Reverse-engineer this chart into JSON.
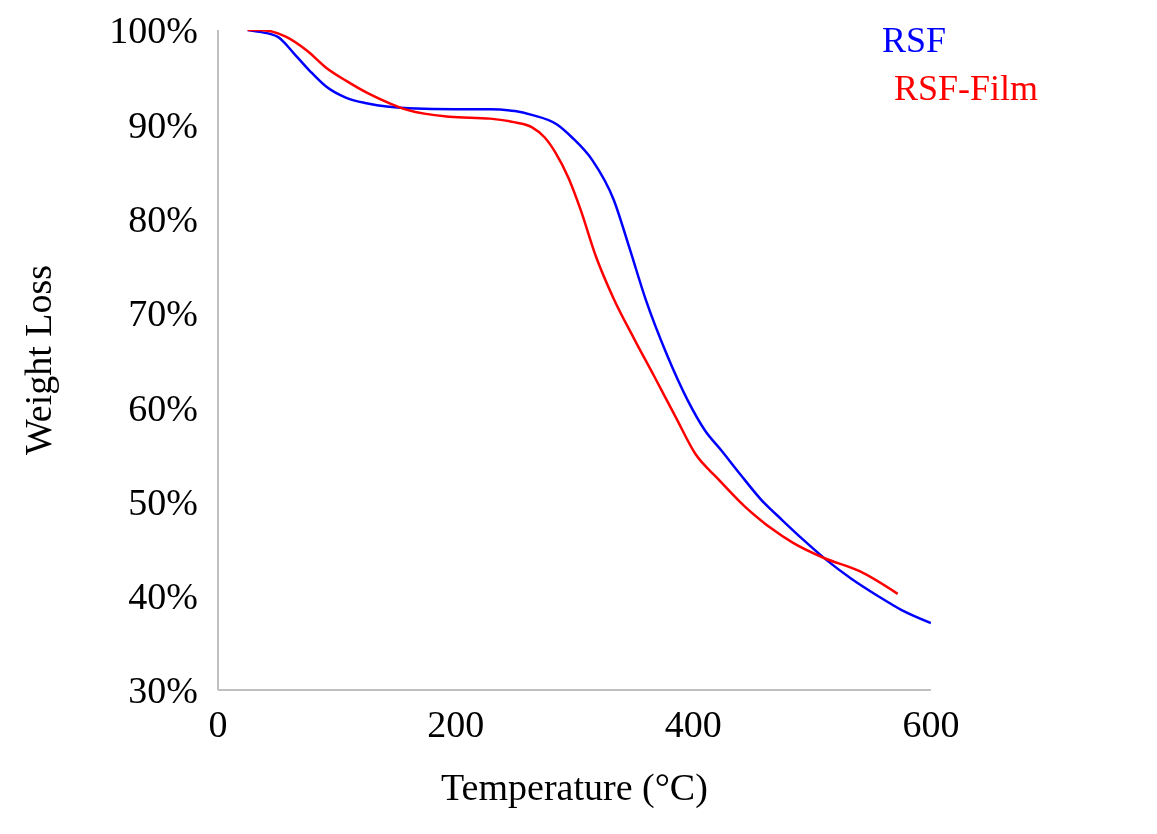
{
  "chart_data": {
    "type": "line",
    "xlabel": "Temperature (°C)",
    "ylabel": "Weight Loss",
    "xlim": [
      0,
      600
    ],
    "xticks": [
      0,
      200,
      400,
      600
    ],
    "ylim": [
      30,
      100
    ],
    "yticks": [
      {
        "value": 30,
        "label": "30%"
      },
      {
        "value": 40,
        "label": "40%"
      },
      {
        "value": 50,
        "label": "50%"
      },
      {
        "value": 60,
        "label": "60%"
      },
      {
        "value": 70,
        "label": "70%"
      },
      {
        "value": 80,
        "label": "80%"
      },
      {
        "value": 90,
        "label": "90%"
      },
      {
        "value": 100,
        "label": "100%"
      }
    ],
    "grid": false,
    "legend": "top right",
    "marker": "none",
    "line_style": "solid",
    "series": [
      {
        "name": "RSF",
        "color": "#0000ff",
        "x": [
          25,
          35,
          50,
          64,
          77,
          91,
          108,
          126,
          160,
          200,
          229,
          250,
          264,
          285,
          298,
          315,
          333,
          346,
          360,
          378,
          395,
          410,
          423,
          440,
          457,
          475,
          492,
          512,
          533,
          555,
          575,
          600
        ],
        "values": [
          100,
          99.8,
          99.3,
          97.5,
          95.7,
          94,
          92.8,
          92.2,
          91.7,
          91.6,
          91.6,
          91.4,
          91,
          90,
          88.6,
          86.2,
          82,
          77,
          71.4,
          65.5,
          60.8,
          57.5,
          55.5,
          52.8,
          50.2,
          48,
          46,
          43.8,
          41.8,
          40,
          38.5,
          37.1
        ]
      },
      {
        "name": "RSF-Film",
        "color": "#ff0000",
        "x": [
          25,
          35,
          57,
          75,
          91,
          108,
          126,
          145,
          160,
          195,
          229,
          250,
          264,
          275,
          284,
          295,
          305,
          318,
          333,
          350,
          367,
          385,
          402,
          420,
          443,
          465,
          484,
          510,
          540,
          572
        ],
        "values": [
          100,
          100,
          99.3,
          97.8,
          96,
          94.6,
          93.3,
          92.2,
          91.5,
          90.8,
          90.6,
          90.2,
          89.7,
          88.6,
          87,
          84.3,
          81,
          76,
          71.5,
          67.3,
          63.3,
          59,
          55,
          52.5,
          49.5,
          47.2,
          45.6,
          44,
          42.6,
          40.2
        ]
      }
    ]
  }
}
